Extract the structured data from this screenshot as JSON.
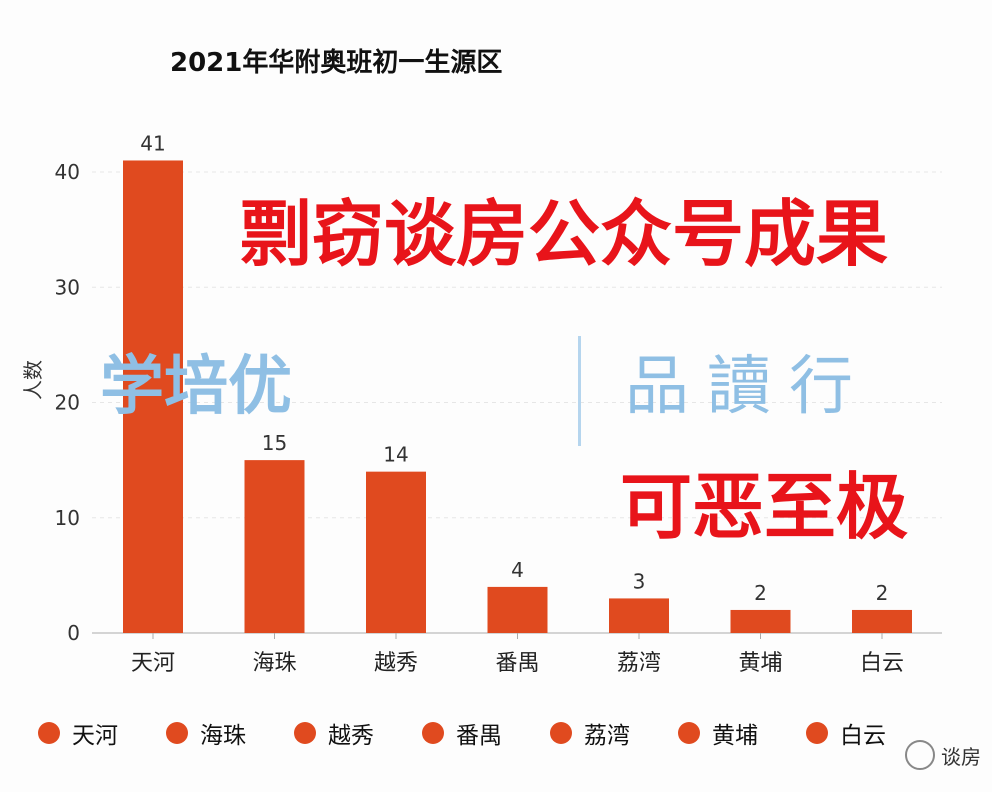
{
  "chart_data": {
    "type": "bar",
    "title": "2021年华附奥班初一生源区",
    "xlabel": "",
    "ylabel": "人数",
    "categories": [
      "天河",
      "海珠",
      "越秀",
      "番禺",
      "荔湾",
      "黄埔",
      "白云"
    ],
    "values": [
      41,
      15,
      14,
      4,
      3,
      2,
      2
    ],
    "ylim": [
      0,
      42
    ],
    "yticks": [
      0,
      10,
      20,
      30,
      40
    ],
    "grid": true,
    "legend": "bottom",
    "bar_color": "#e04a1f"
  },
  "watermarks": {
    "red_line1": "剽窃谈房公众号成果",
    "red_line2": "可恶至极",
    "blue_left": "学培优",
    "blue_right": "品讀行",
    "brand": "谈房"
  }
}
